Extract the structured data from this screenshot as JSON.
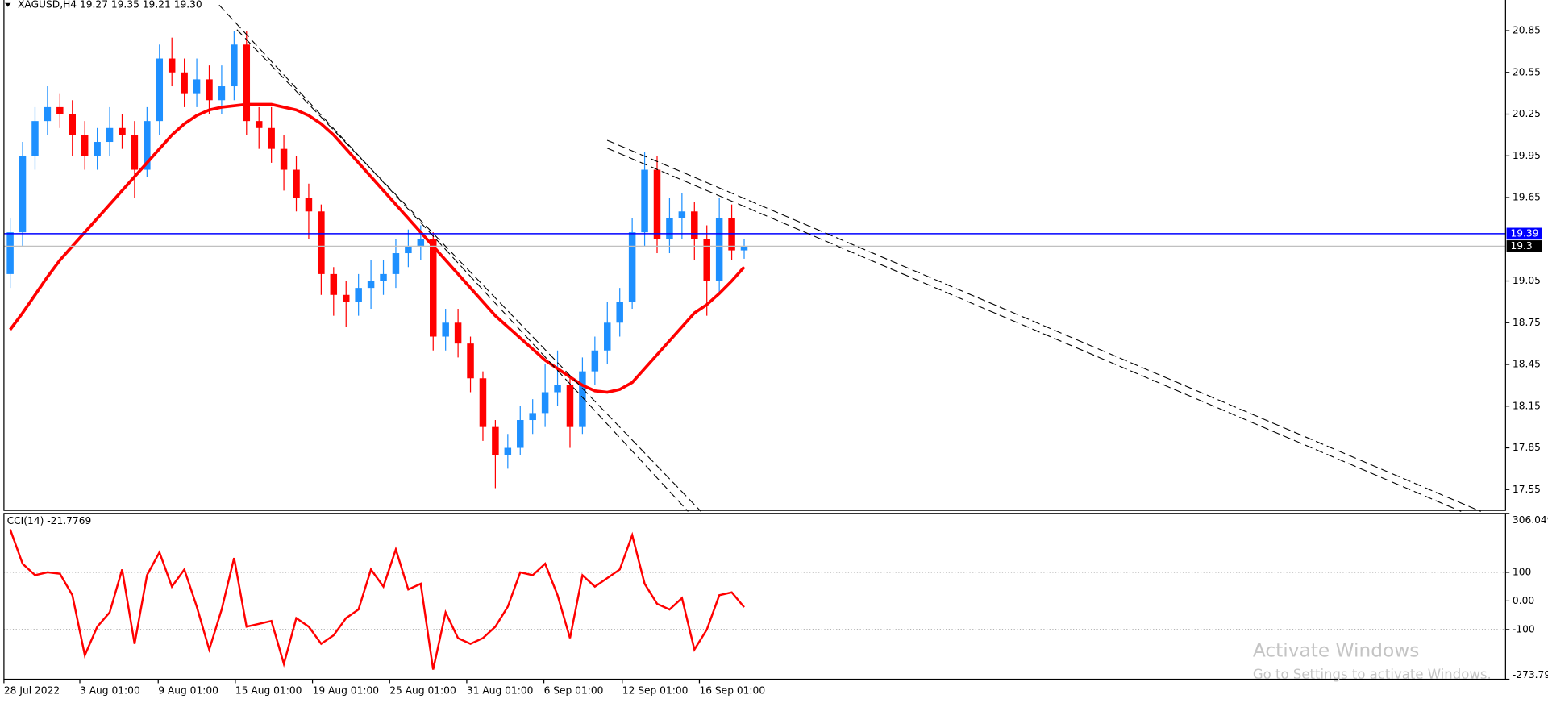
{
  "chart_data": [
    {
      "type": "candlestick",
      "title": "XAGUSD,H4  19.27 19.35 19.21 19.30",
      "x": [
        0,
        1,
        2,
        3,
        4,
        5,
        6,
        7,
        8,
        9,
        10,
        11,
        12,
        13,
        14,
        15,
        16,
        17,
        18,
        19,
        20,
        21,
        22,
        23,
        24,
        25,
        26,
        27,
        28,
        29,
        30,
        31,
        32,
        33,
        34,
        35,
        36,
        37,
        38,
        39,
        40,
        41,
        42,
        43,
        44,
        45,
        46,
        47,
        48,
        49,
        50,
        51,
        52,
        53,
        54,
        55,
        56,
        57,
        58,
        59
      ],
      "open": [
        19.1,
        19.4,
        19.95,
        20.2,
        20.3,
        20.25,
        20.1,
        19.95,
        20.05,
        20.15,
        20.1,
        19.85,
        20.2,
        20.65,
        20.55,
        20.4,
        20.5,
        20.35,
        20.45,
        20.75,
        20.2,
        20.15,
        20.0,
        19.85,
        19.65,
        19.55,
        19.1,
        18.95,
        18.9,
        19.0,
        19.05,
        19.1,
        19.25,
        19.3,
        19.35,
        18.65,
        18.75,
        18.6,
        18.35,
        18.0,
        17.8,
        17.85,
        18.05,
        18.1,
        18.25,
        18.3,
        18.0,
        18.4,
        18.55,
        18.75,
        18.9,
        19.4,
        19.85,
        19.35,
        19.5,
        19.55,
        19.35,
        19.05,
        19.5,
        19.27
      ],
      "high": [
        19.5,
        20.05,
        20.3,
        20.45,
        20.4,
        20.35,
        20.2,
        20.15,
        20.3,
        20.25,
        20.2,
        20.3,
        20.75,
        20.8,
        20.65,
        20.65,
        20.6,
        20.6,
        20.85,
        20.85,
        20.3,
        20.3,
        20.1,
        19.95,
        19.75,
        19.6,
        19.15,
        19.05,
        19.1,
        19.2,
        19.2,
        19.35,
        19.42,
        19.45,
        19.4,
        18.85,
        18.85,
        18.65,
        18.4,
        18.05,
        17.95,
        18.15,
        18.2,
        18.45,
        18.55,
        18.35,
        18.5,
        18.65,
        18.9,
        19.0,
        19.5,
        19.98,
        19.95,
        19.65,
        19.68,
        19.62,
        19.45,
        19.65,
        19.6,
        19.35
      ],
      "low": [
        19.0,
        19.3,
        19.85,
        20.1,
        20.15,
        19.95,
        19.85,
        19.85,
        19.95,
        20.0,
        19.65,
        19.8,
        20.1,
        20.45,
        20.3,
        20.3,
        20.25,
        20.25,
        20.35,
        20.1,
        20.0,
        19.9,
        19.7,
        19.55,
        19.35,
        18.95,
        18.8,
        18.72,
        18.8,
        18.85,
        18.95,
        19.0,
        19.15,
        19.2,
        18.55,
        18.55,
        18.5,
        18.25,
        17.9,
        17.56,
        17.7,
        17.8,
        17.95,
        18.0,
        18.15,
        17.85,
        17.95,
        18.3,
        18.45,
        18.65,
        18.85,
        19.3,
        19.25,
        19.25,
        19.35,
        19.2,
        18.8,
        18.95,
        19.2,
        19.21
      ],
      "close": [
        19.4,
        19.95,
        20.2,
        20.3,
        20.25,
        20.1,
        19.95,
        20.05,
        20.15,
        20.1,
        19.85,
        20.2,
        20.65,
        20.55,
        20.4,
        20.5,
        20.35,
        20.45,
        20.75,
        20.2,
        20.15,
        20.0,
        19.85,
        19.65,
        19.55,
        19.1,
        18.95,
        18.9,
        19.0,
        19.05,
        19.1,
        19.25,
        19.3,
        19.35,
        18.65,
        18.75,
        18.6,
        18.35,
        18.0,
        17.8,
        17.85,
        18.05,
        18.1,
        18.25,
        18.3,
        18.0,
        18.4,
        18.55,
        18.75,
        18.9,
        19.4,
        19.85,
        19.35,
        19.5,
        19.55,
        19.35,
        19.05,
        19.5,
        19.27,
        19.3
      ],
      "up_color": "#1e90ff",
      "down_color": "#ff0000",
      "ma": {
        "color": "#ff0000",
        "values": [
          18.7,
          18.82,
          18.95,
          19.08,
          19.2,
          19.3,
          19.4,
          19.5,
          19.6,
          19.7,
          19.8,
          19.9,
          20.0,
          20.1,
          20.18,
          20.24,
          20.28,
          20.3,
          20.31,
          20.32,
          20.32,
          20.32,
          20.3,
          20.28,
          20.24,
          20.18,
          20.1,
          20.0,
          19.9,
          19.8,
          19.7,
          19.6,
          19.5,
          19.4,
          19.3,
          19.2,
          19.1,
          19.0,
          18.9,
          18.8,
          18.72,
          18.64,
          18.56,
          18.48,
          18.42,
          18.36,
          18.3,
          18.26,
          18.25,
          18.27,
          18.32,
          18.42,
          18.52,
          18.62,
          18.72,
          18.82,
          18.88,
          18.96,
          19.05,
          19.15
        ]
      },
      "hlines": [
        {
          "value": 19.39,
          "color": "#0000ff"
        },
        {
          "value": 19.3,
          "color": "#c0c0c0"
        }
      ],
      "xlim": [
        -0.5,
        120.2
      ],
      "xticks": [
        {
          "value": -0.5,
          "label": "28 Jul 2022"
        },
        {
          "value": 5.6,
          "label": "3 Aug 01:00"
        },
        {
          "value": 11.9,
          "label": "9 Aug 01:00"
        },
        {
          "value": 18.1,
          "label": "15 Aug 01:00"
        },
        {
          "value": 24.3,
          "label": "19 Aug 01:00"
        },
        {
          "value": 30.5,
          "label": "25 Aug 01:00"
        },
        {
          "value": 36.7,
          "label": "31 Aug 01:00"
        },
        {
          "value": 42.9,
          "label": "6 Sep 01:00"
        },
        {
          "value": 49.2,
          "label": "12 Sep 01:00"
        },
        {
          "value": 55.4,
          "label": "16 Sep 01:00"
        }
      ],
      "ylim": [
        17.4,
        21.07
      ],
      "yticks": [
        20.85,
        20.55,
        20.25,
        19.95,
        19.65,
        19.05,
        18.75,
        18.45,
        18.15,
        17.85,
        17.55
      ]
    },
    {
      "type": "line",
      "title": "CCI(14) -21.7769",
      "color": "#ff0000",
      "values": [
        250,
        130,
        90,
        100,
        95,
        20,
        -190,
        -90,
        -40,
        110,
        -150,
        90,
        170,
        50,
        110,
        -20,
        -170,
        -30,
        150,
        -90,
        -80,
        -70,
        -220,
        -60,
        -90,
        -150,
        -120,
        -60,
        -30,
        110,
        50,
        180,
        40,
        60,
        -240,
        -40,
        -130,
        -150,
        -130,
        -90,
        -20,
        100,
        90,
        130,
        20,
        -130,
        90,
        50,
        80,
        110,
        230,
        60,
        -10,
        -30,
        10,
        -170,
        -100,
        20,
        30,
        -21.7769
      ],
      "ylim": [
        -273.796,
        306.049
      ],
      "yticks": [
        306.049,
        100,
        {
          "value": 0,
          "label": "0.00"
        },
        -100,
        -273.796
      ],
      "levels": [
        100,
        -100
      ]
    }
  ],
  "watermark": {
    "title": "Activate Windows",
    "subtitle": "Go to Settings to activate Windows."
  }
}
